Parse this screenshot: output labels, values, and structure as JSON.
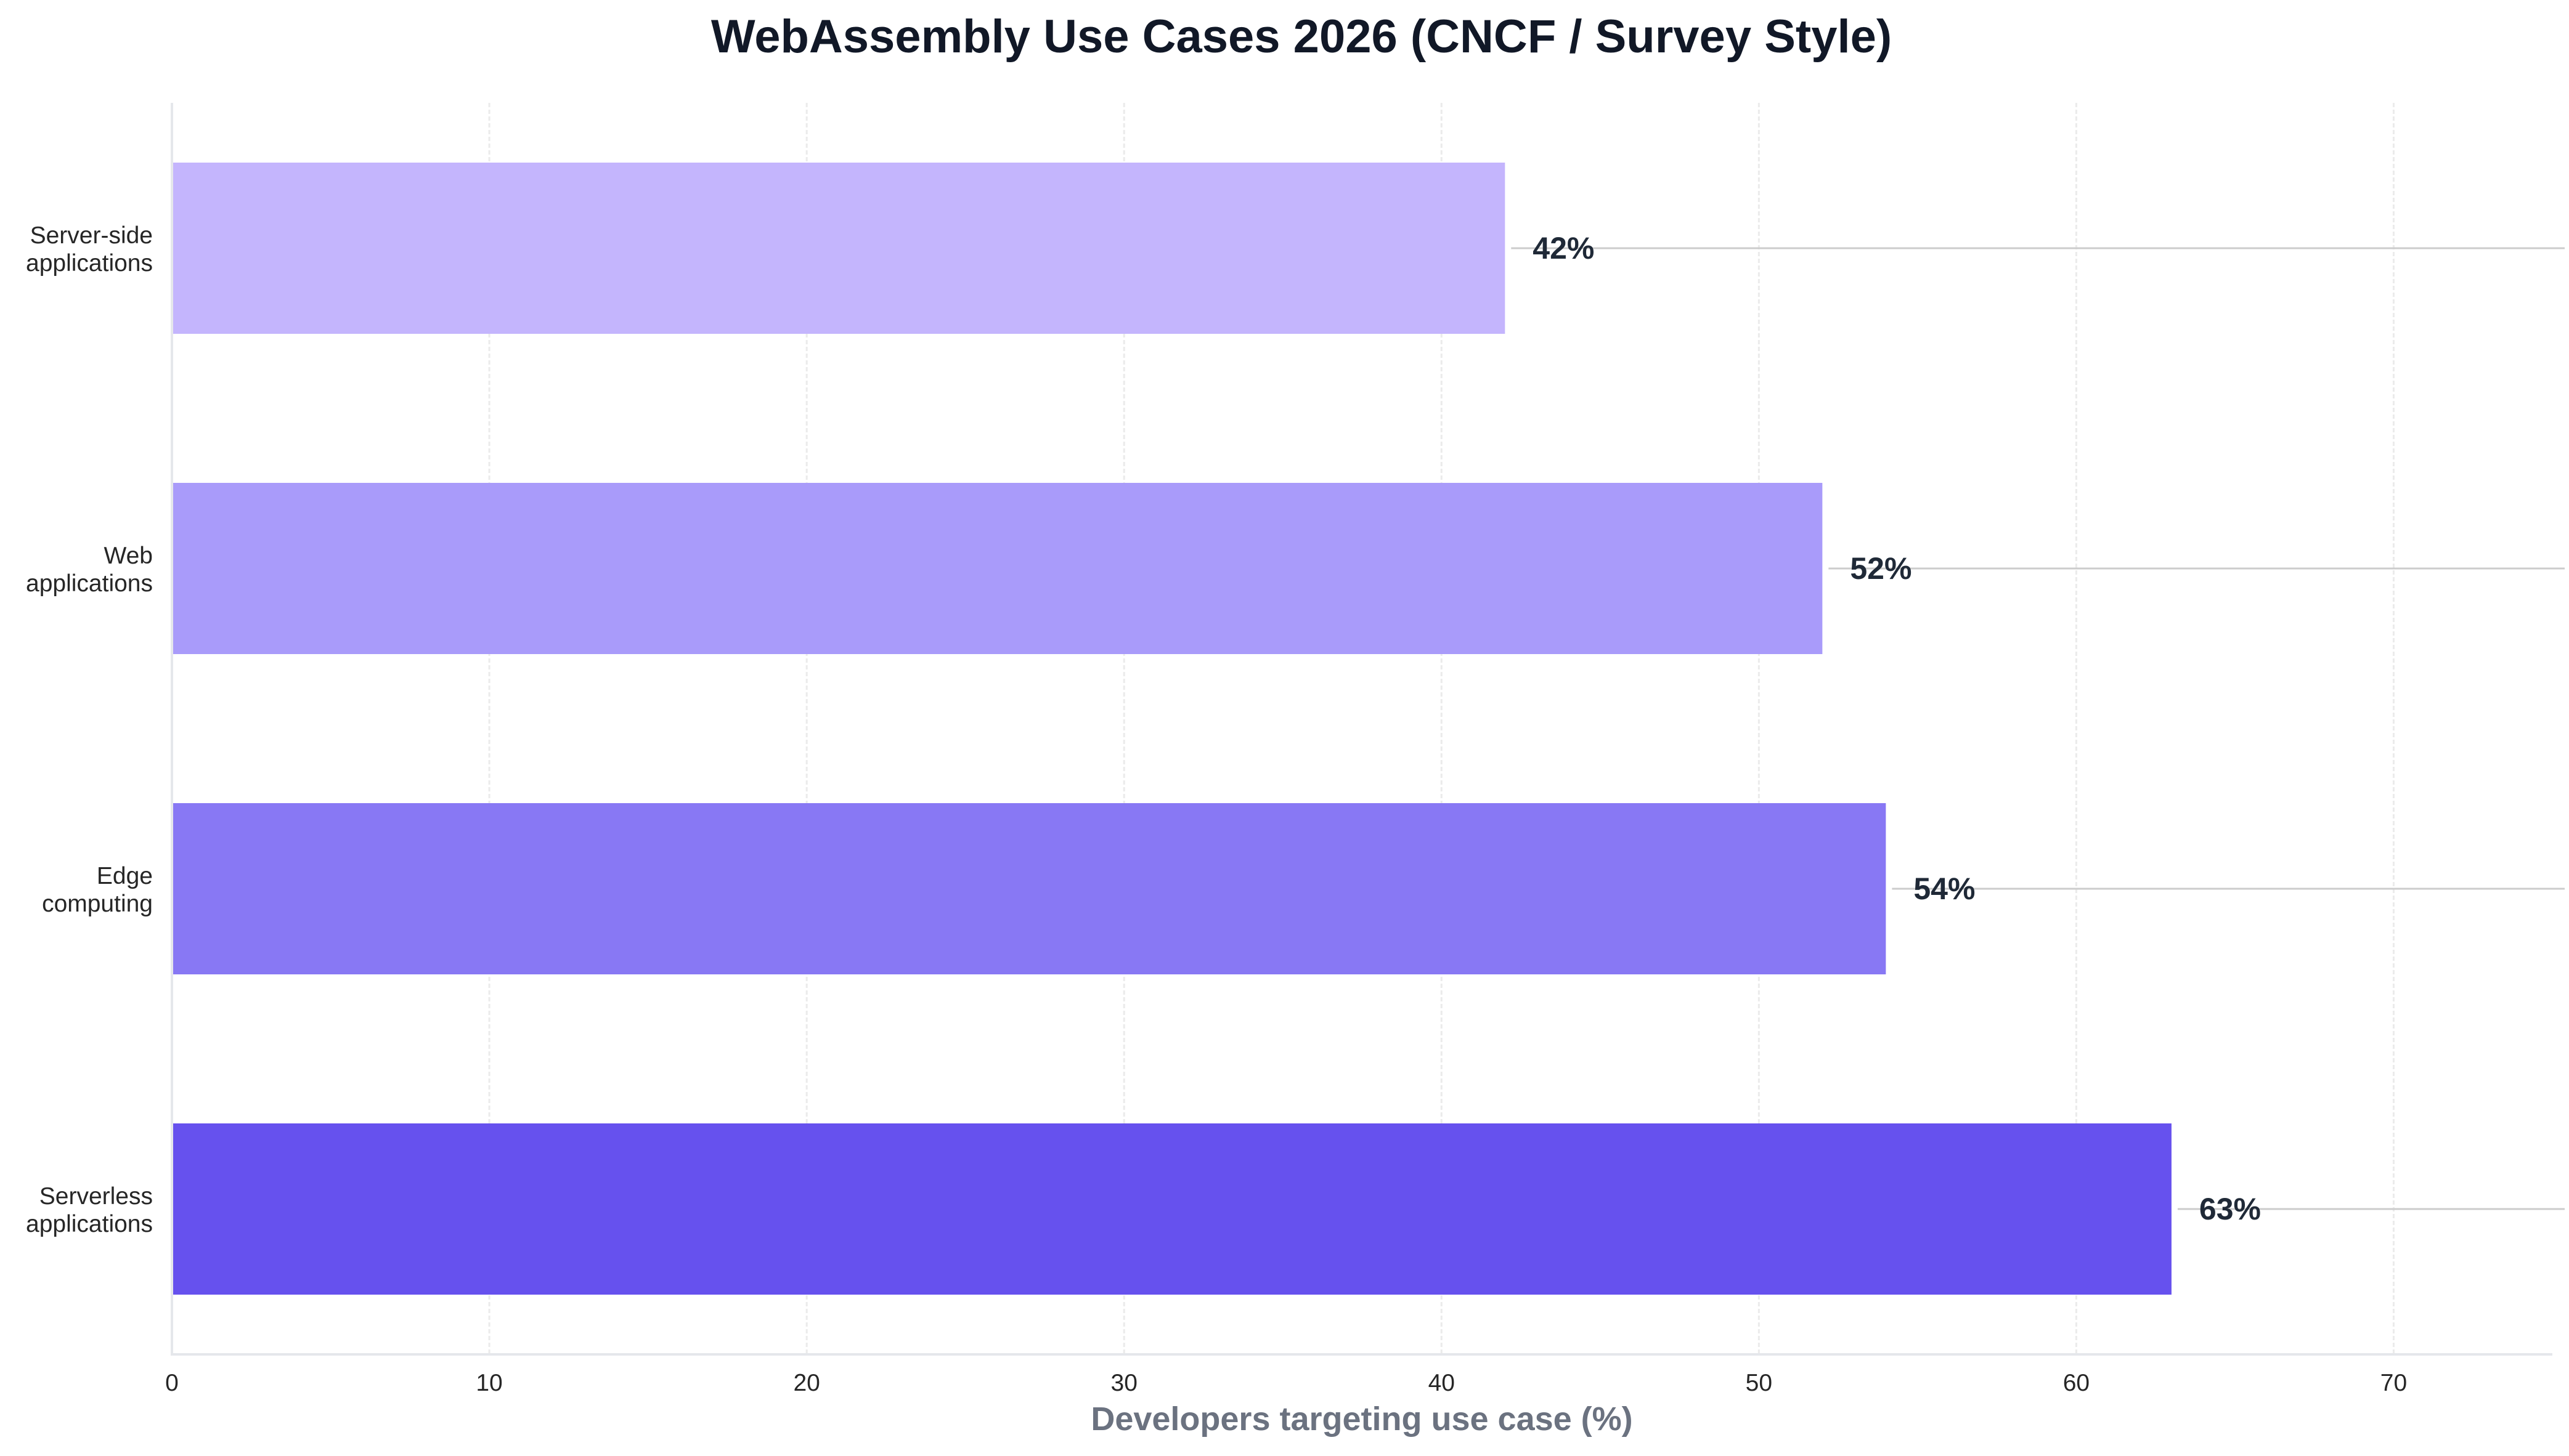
{
  "chart_data": {
    "type": "bar",
    "orientation": "horizontal",
    "title": "WebAssembly Use Cases 2026 (CNCF / Survey Style)",
    "xlabel": "Developers targeting use case (%)",
    "ylabel": "",
    "categories": [
      "Server-side applications",
      "Web applications",
      "Edge computing",
      "Serverless applications"
    ],
    "category_lines": [
      [
        "Server-side",
        "applications"
      ],
      [
        "Web",
        "applications"
      ],
      [
        "Edge",
        "computing"
      ],
      [
        "Serverless",
        "applications"
      ]
    ],
    "values": [
      42,
      52,
      54,
      63
    ],
    "value_labels": [
      "42%",
      "52%",
      "54%",
      "63%"
    ],
    "colors": [
      "#c4b5fd",
      "#a99bfa",
      "#8878f4",
      "#6651ee"
    ],
    "xlim": [
      0,
      75
    ],
    "xticks": [
      0,
      10,
      20,
      30,
      40,
      50,
      60,
      70
    ],
    "grid": {
      "x": true,
      "y": false,
      "style": "dashed"
    },
    "legend": null,
    "leader_lines": true
  },
  "colors": {
    "title": "#111827",
    "xlabel": "#6b7280",
    "value_label": "#1f2937",
    "tick_label": "#262626",
    "spine": "#e5e7eb",
    "grid": "#ebebeb",
    "leader": "#cccccc"
  }
}
